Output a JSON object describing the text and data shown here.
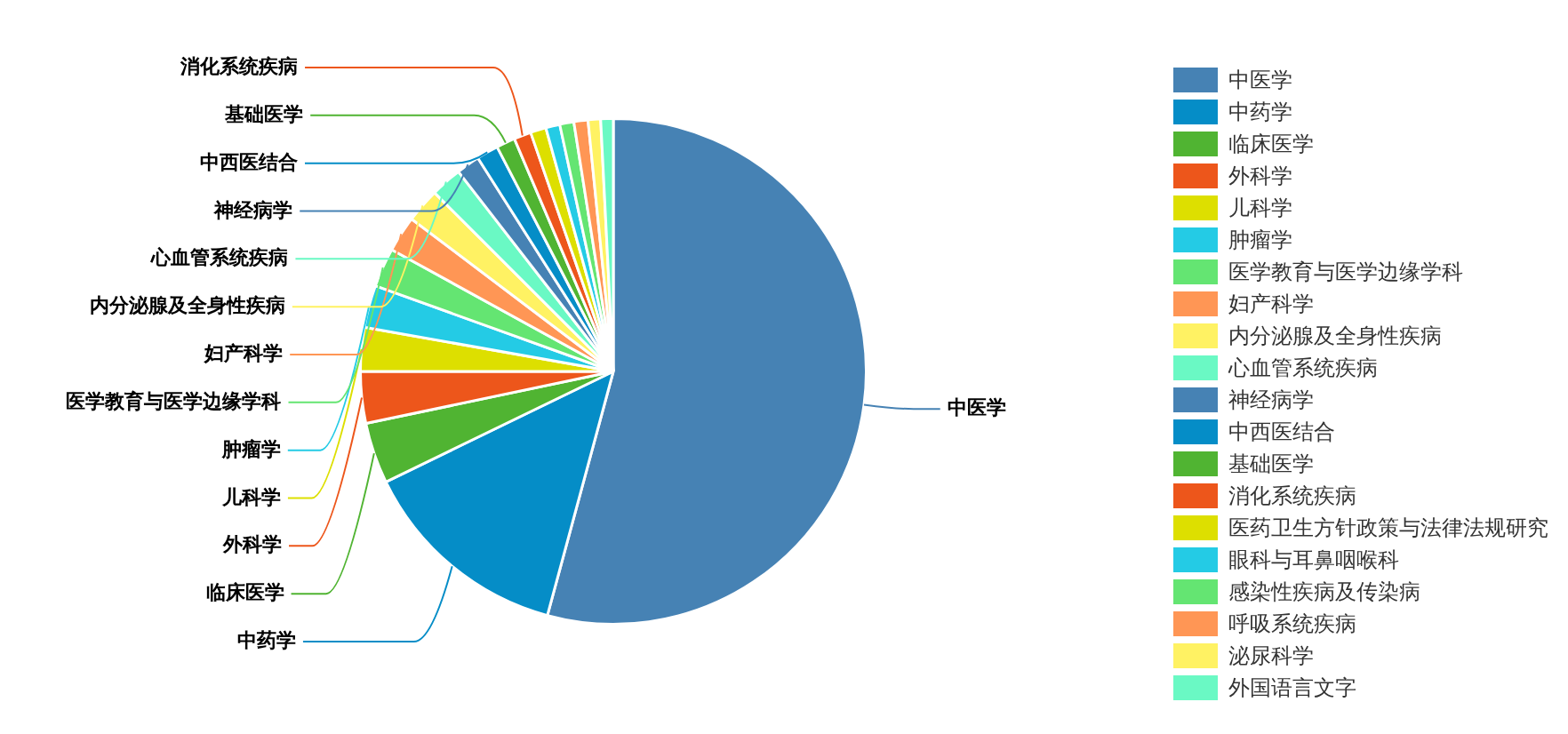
{
  "chart_data": {
    "type": "pie",
    "legend": "right",
    "categories": [
      "中医学",
      "中药学",
      "临床医学",
      "外科学",
      "儿科学",
      "肿瘤学",
      "医学教育与医学边缘学科",
      "妇产科学",
      "内分泌腺及全身性疾病",
      "心血管系统疾病",
      "神经病学",
      "中西医结合",
      "基础医学",
      "消化系统疾病",
      "医药卫生方针政策与法律法规研究",
      "眼科与耳鼻咽喉科",
      "感染性疾病及传染病",
      "呼吸系统疾病",
      "泌尿科学",
      "外国语言文字"
    ],
    "values": [
      54.2,
      13.6,
      3.9,
      3.3,
      2.8,
      2.7,
      2.5,
      2.3,
      2.2,
      2.0,
      1.5,
      1.4,
      1.2,
      1.1,
      1.0,
      0.9,
      0.9,
      0.9,
      0.8,
      0.8
    ],
    "colors": [
      "#4682b4",
      "#058dc7",
      "#50b432",
      "#ed561b",
      "#dddf00",
      "#24cbe5",
      "#64e572",
      "#ff9655",
      "#fff263",
      "#6af9c4",
      "#4682b4",
      "#058dc7",
      "#50b432",
      "#ed561b",
      "#dddf00",
      "#24cbe5",
      "#64e572",
      "#ff9655",
      "#fff263",
      "#6af9c4"
    ]
  }
}
